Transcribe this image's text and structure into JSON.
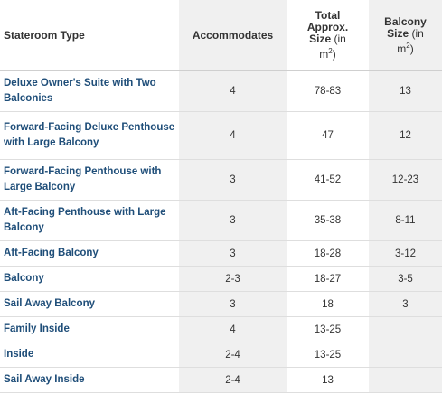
{
  "header": {
    "stateroom_type": "Stateroom Type",
    "accommodates": "Accommodates",
    "total_size_line1": "Total",
    "total_size_line2": "Approx.",
    "total_size_line3": "Size",
    "total_size_unit_a": "(in",
    "total_size_unit_b": "m",
    "balcony_size_line1": "Balcony",
    "balcony_size_line2": "Size",
    "balcony_size_unit_a": "(in",
    "balcony_size_unit_b": "m",
    "unit_close": ")"
  },
  "rows": [
    {
      "type": "Deluxe Owner's Suite with Two Balconies",
      "accommodates": "4",
      "total_size": "78-83",
      "balcony_size": "13"
    },
    {
      "type": "Forward-Facing Deluxe Penthouse with Large Balcony",
      "accommodates": "4",
      "total_size": "47",
      "balcony_size": "12"
    },
    {
      "type": "Forward-Facing Penthouse with Large Balcony",
      "accommodates": "3",
      "total_size": "41-52",
      "balcony_size": "12-23"
    },
    {
      "type": "Aft-Facing Penthouse with Large Balcony",
      "accommodates": "3",
      "total_size": "35-38",
      "balcony_size": "8-11"
    },
    {
      "type": "Aft-Facing Balcony",
      "accommodates": "3",
      "total_size": "18-28",
      "balcony_size": "3-12"
    },
    {
      "type": "Balcony",
      "accommodates": "2-3",
      "total_size": "18-27",
      "balcony_size": "3-5"
    },
    {
      "type": "Sail Away Balcony",
      "accommodates": "3",
      "total_size": "18",
      "balcony_size": "3"
    },
    {
      "type": "Family Inside",
      "accommodates": "4",
      "total_size": "13-25",
      "balcony_size": ""
    },
    {
      "type": "Inside",
      "accommodates": "2-4",
      "total_size": "13-25",
      "balcony_size": ""
    },
    {
      "type": "Sail Away Inside",
      "accommodates": "2-4",
      "total_size": "13",
      "balcony_size": ""
    }
  ]
}
